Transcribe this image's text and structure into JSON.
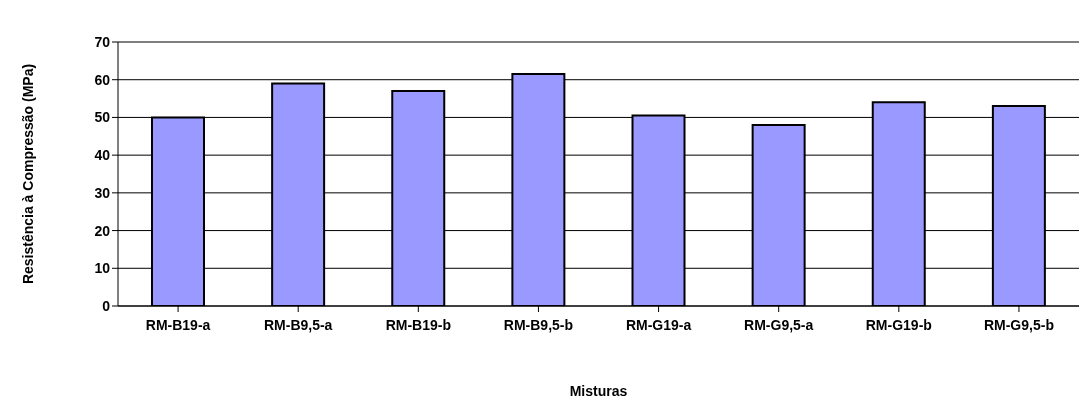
{
  "chart_data": {
    "type": "bar",
    "xlabel": "Misturas",
    "ylabel": "Resistência à Compressão (MPa)",
    "categories": [
      "RM-B19-a",
      "RM-B9,5-a",
      "RM-B19-b",
      "RM-B9,5-b",
      "RM-G19-a",
      "RM-G9,5-a",
      "RM-G19-b",
      "RM-G9,5-b"
    ],
    "values": [
      50,
      59,
      57,
      61.5,
      50.5,
      48,
      54,
      53
    ],
    "color": "#9999ff",
    "ylim": [
      0,
      70
    ],
    "yticks": [
      0,
      10,
      20,
      30,
      40,
      50,
      60,
      70
    ],
    "grid": "y"
  }
}
